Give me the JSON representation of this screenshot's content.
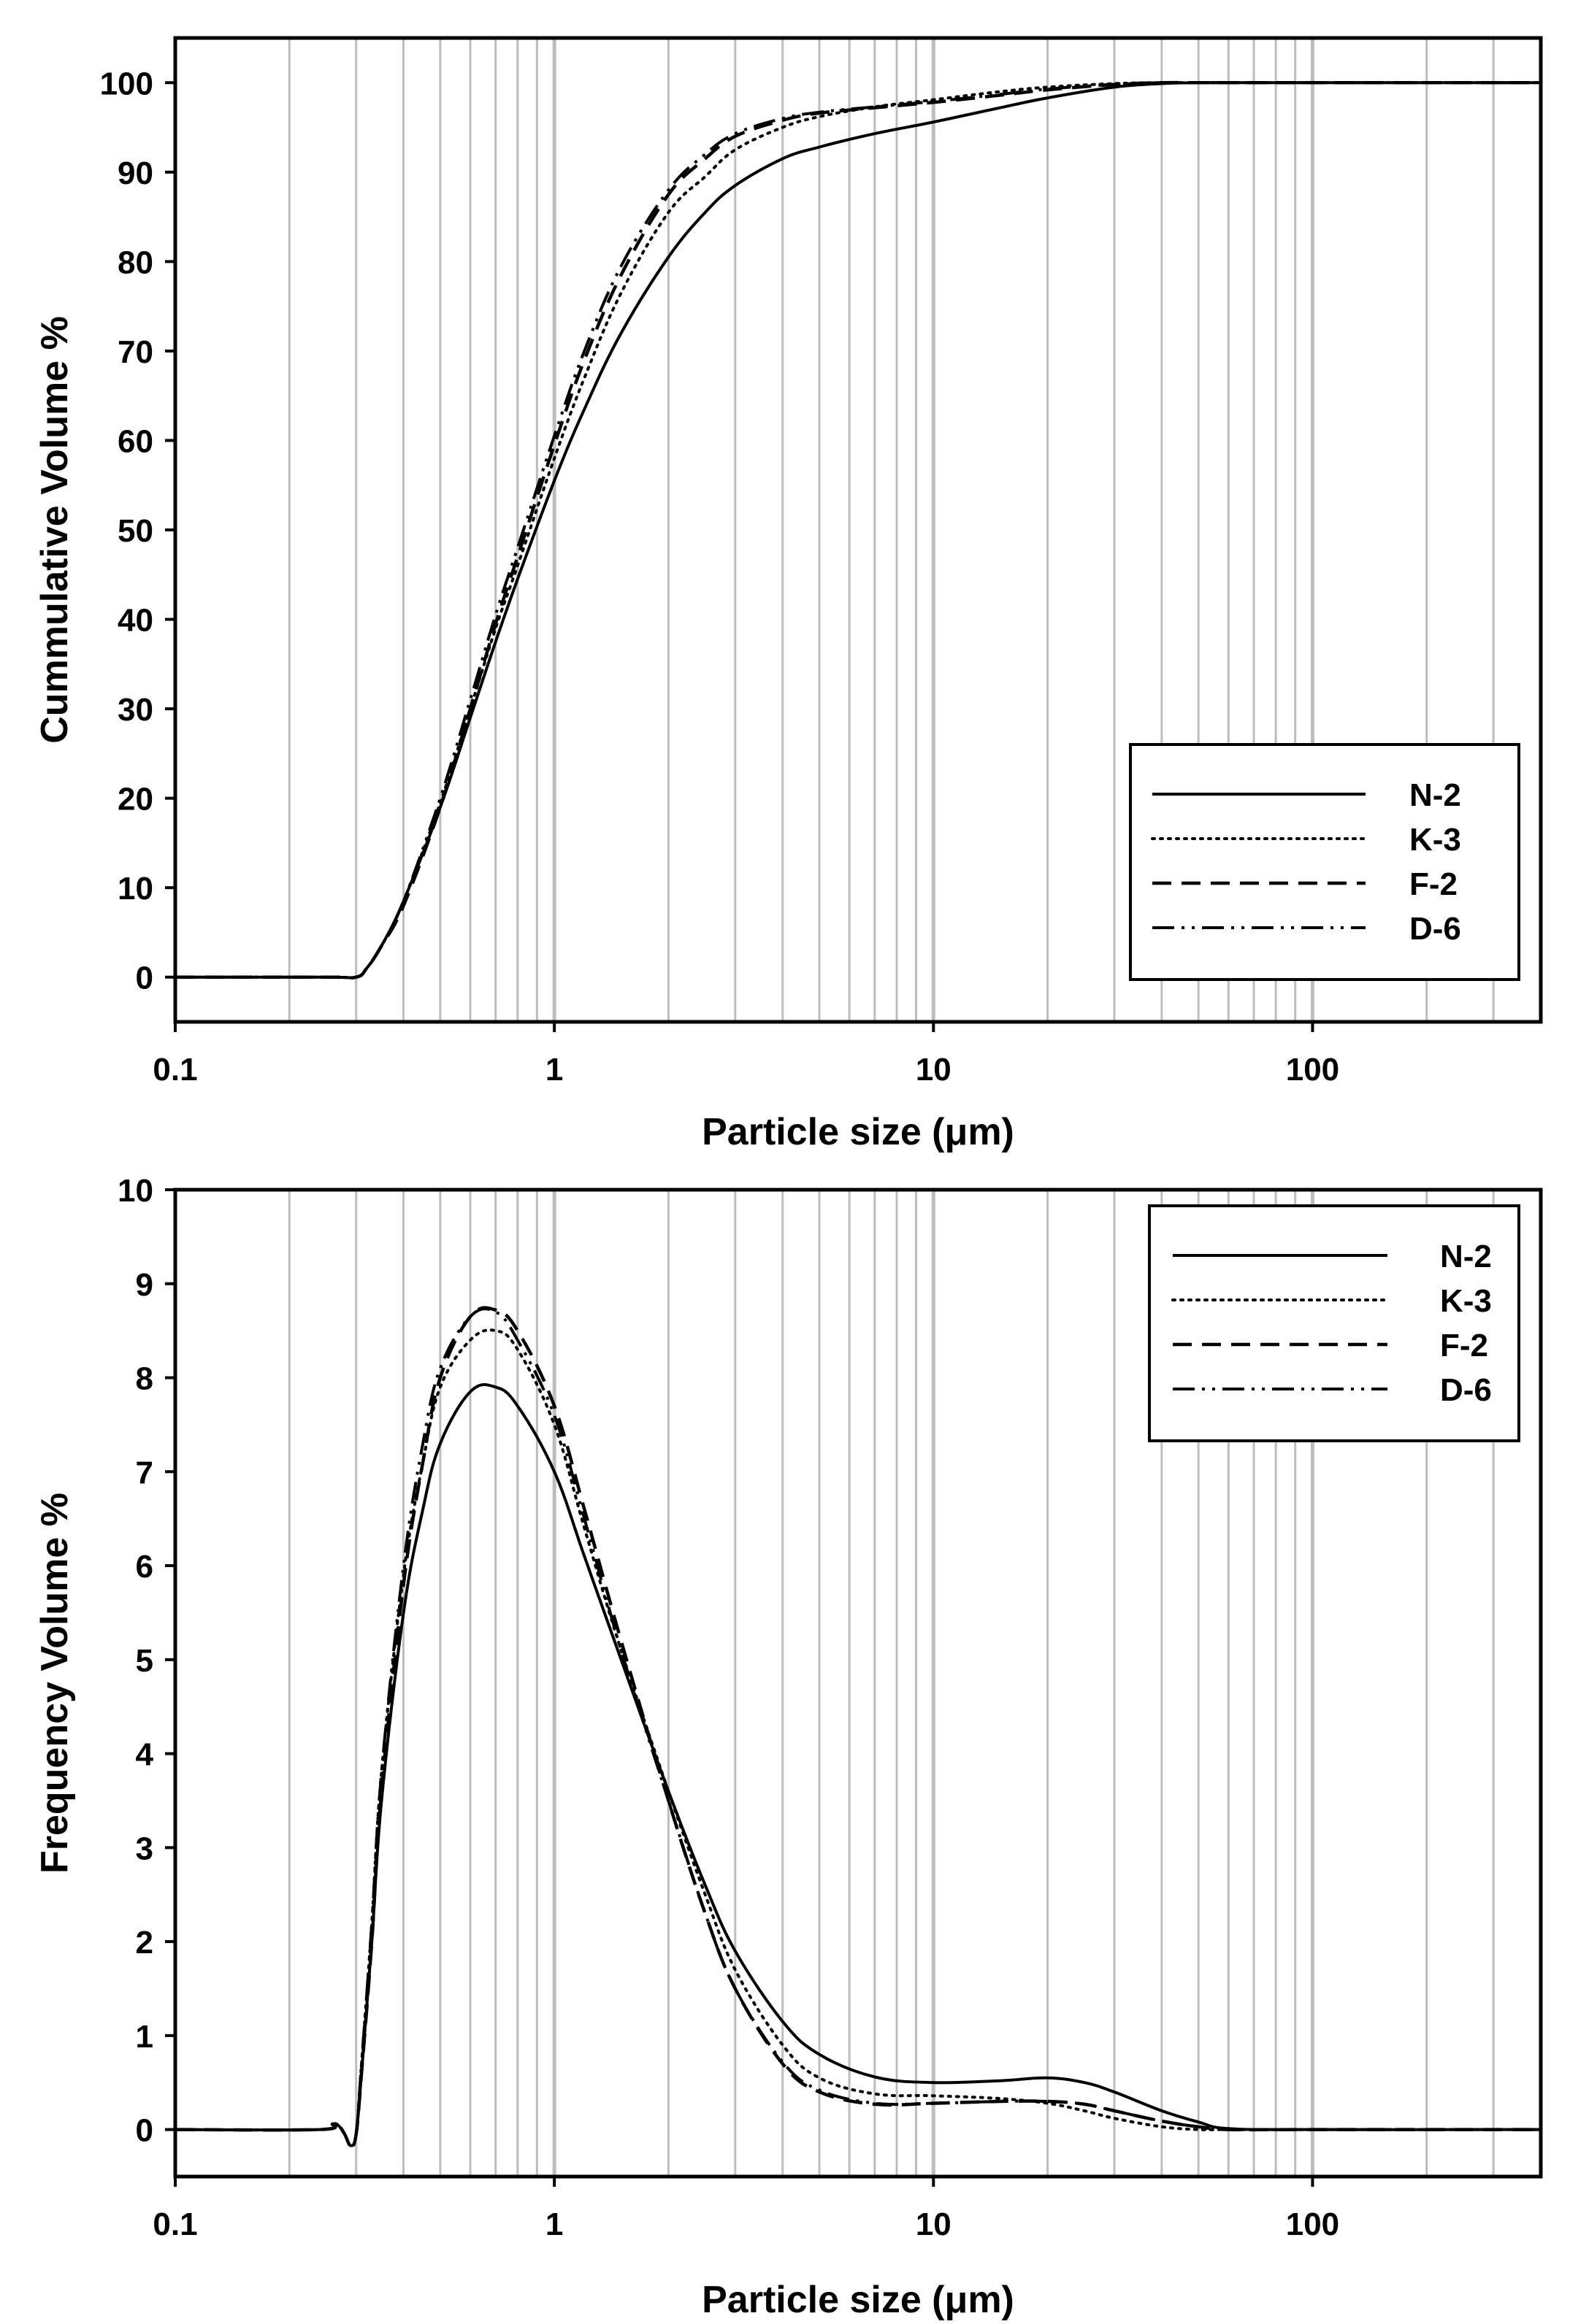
{
  "chart_data": [
    {
      "type": "line",
      "id": "cumulative",
      "xscale": "log",
      "xlim": [
        0.1,
        400
      ],
      "ylim": [
        -5,
        105
      ],
      "xticks": [
        0.1,
        1,
        10,
        100
      ],
      "xtick_labels": [
        "0.1",
        "1",
        "10",
        "100"
      ],
      "yticks": [
        0,
        10,
        20,
        30,
        40,
        50,
        60,
        70,
        80,
        90,
        100
      ],
      "ytick_labels": [
        "0",
        "10",
        "20",
        "30",
        "40",
        "50",
        "60",
        "70",
        "80",
        "90",
        "100"
      ],
      "xlabel": "Particle size (μm)",
      "ylabel": "Cummulative Volume %",
      "grid": "vertical",
      "legend_position": "bottom-right",
      "series": [
        {
          "name": "N-2",
          "style": "solid",
          "x": [
            0.1,
            0.25,
            0.3,
            0.32,
            0.35,
            0.4,
            0.5,
            0.6,
            0.7,
            0.8,
            1.0,
            1.2,
            1.5,
            2.0,
            2.5,
            3,
            4,
            5,
            7,
            10,
            15,
            20,
            30,
            40,
            50,
            100,
            400
          ],
          "y": [
            0,
            0,
            0,
            1,
            3.5,
            8.5,
            19,
            29,
            37.5,
            44.5,
            55.5,
            63.5,
            72,
            80.5,
            85.5,
            88.5,
            91.5,
            92.8,
            94.3,
            95.6,
            97.2,
            98.3,
            99.5,
            99.9,
            100,
            100,
            100
          ]
        },
        {
          "name": "K-3",
          "style": "dotted",
          "x": [
            0.1,
            0.25,
            0.3,
            0.32,
            0.35,
            0.4,
            0.5,
            0.6,
            0.7,
            0.8,
            1.0,
            1.2,
            1.5,
            2.0,
            2.5,
            3,
            4,
            5,
            7,
            10,
            15,
            20,
            30,
            40,
            50,
            100,
            400
          ],
          "y": [
            0,
            0,
            0,
            1,
            3.5,
            8.5,
            19.5,
            30,
            39,
            46,
            58,
            67,
            76.5,
            85.5,
            89.5,
            92.5,
            95,
            96.2,
            97.3,
            98.1,
            99,
            99.5,
            99.9,
            100,
            100,
            100,
            100
          ]
        },
        {
          "name": "F-2",
          "style": "dashed",
          "x": [
            0.1,
            0.25,
            0.3,
            0.32,
            0.35,
            0.4,
            0.5,
            0.6,
            0.7,
            0.8,
            1.0,
            1.2,
            1.5,
            2.0,
            2.5,
            3,
            4,
            5,
            7,
            10,
            15,
            20,
            30,
            40,
            50,
            100,
            400
          ],
          "y": [
            0,
            0,
            0,
            1,
            3.5,
            8,
            19,
            30,
            39.5,
            47,
            59.5,
            69,
            78.5,
            87.5,
            91.5,
            94,
            95.8,
            96.6,
            97.2,
            97.8,
            98.6,
            99.2,
            99.8,
            100,
            100,
            100,
            100
          ]
        },
        {
          "name": "D-6",
          "style": "dash-dot-dot",
          "x": [
            0.1,
            0.25,
            0.3,
            0.32,
            0.35,
            0.4,
            0.5,
            0.6,
            0.7,
            0.8,
            1.0,
            1.2,
            1.5,
            2.0,
            2.5,
            3,
            4,
            5,
            7,
            10,
            15,
            20,
            30,
            40,
            50,
            100,
            400
          ],
          "y": [
            0,
            0,
            0,
            1,
            3.5,
            8.5,
            20,
            31,
            40.5,
            48,
            60.5,
            70,
            79.5,
            88,
            92,
            94.3,
            96,
            96.7,
            97.3,
            97.9,
            98.7,
            99.3,
            99.8,
            100,
            100,
            100,
            100
          ]
        }
      ]
    },
    {
      "type": "line",
      "id": "frequency",
      "xscale": "log",
      "xlim": [
        0.1,
        400
      ],
      "ylim": [
        -0.5,
        10
      ],
      "xticks": [
        0.1,
        1,
        10,
        100
      ],
      "xtick_labels": [
        "0.1",
        "1",
        "10",
        "100"
      ],
      "yticks": [
        0,
        1,
        2,
        3,
        4,
        5,
        6,
        7,
        8,
        9,
        10
      ],
      "ytick_labels": [
        "0",
        "1",
        "2",
        "3",
        "4",
        "5",
        "6",
        "7",
        "8",
        "9",
        "10"
      ],
      "xlabel": "Particle size (μm)",
      "ylabel": "Frequency Volume %",
      "grid": "vertical",
      "legend_position": "top-right",
      "series": [
        {
          "name": "N-2",
          "style": "solid",
          "x": [
            0.1,
            0.24,
            0.26,
            0.27,
            0.28,
            0.29,
            0.3,
            0.31,
            0.33,
            0.35,
            0.4,
            0.45,
            0.5,
            0.6,
            0.7,
            0.8,
            1.0,
            1.2,
            1.5,
            2.0,
            2.5,
            3,
            4,
            5,
            7,
            10,
            15,
            20,
            25,
            30,
            40,
            50,
            60,
            100,
            400
          ],
          "y": [
            0,
            0,
            0.06,
            0.04,
            -0.05,
            -0.17,
            -0.05,
            0.6,
            2.0,
            3.5,
            5.5,
            6.6,
            7.3,
            7.85,
            7.9,
            7.7,
            7.0,
            6.1,
            5.0,
            3.6,
            2.6,
            1.9,
            1.15,
            0.8,
            0.56,
            0.5,
            0.52,
            0.55,
            0.5,
            0.4,
            0.2,
            0.08,
            0.01,
            0,
            0
          ]
        },
        {
          "name": "K-3",
          "style": "dotted",
          "x": [
            0.1,
            0.24,
            0.26,
            0.27,
            0.28,
            0.29,
            0.3,
            0.31,
            0.33,
            0.35,
            0.4,
            0.45,
            0.5,
            0.6,
            0.7,
            0.8,
            1.0,
            1.2,
            1.5,
            2.0,
            2.5,
            3,
            4,
            5,
            7,
            10,
            15,
            20,
            25,
            30,
            40,
            50,
            60,
            100,
            400
          ],
          "y": [
            0,
            0,
            0.06,
            0.04,
            -0.05,
            -0.17,
            -0.05,
            0.7,
            2.2,
            3.8,
            5.9,
            7.1,
            7.9,
            8.4,
            8.5,
            8.3,
            7.5,
            6.4,
            5.1,
            3.6,
            2.5,
            1.7,
            0.9,
            0.55,
            0.38,
            0.36,
            0.33,
            0.28,
            0.2,
            0.12,
            0.03,
            0.0,
            0,
            0,
            0
          ]
        },
        {
          "name": "F-2",
          "style": "dashed",
          "x": [
            0.1,
            0.24,
            0.26,
            0.27,
            0.28,
            0.29,
            0.3,
            0.31,
            0.33,
            0.35,
            0.4,
            0.45,
            0.5,
            0.6,
            0.7,
            0.8,
            1.0,
            1.2,
            1.5,
            2.0,
            2.5,
            3,
            4,
            5,
            7,
            10,
            15,
            20,
            25,
            30,
            40,
            50,
            60,
            100,
            400
          ],
          "y": [
            0,
            0,
            0.06,
            0.04,
            -0.05,
            -0.17,
            -0.05,
            0.6,
            2.0,
            3.6,
            5.8,
            7.1,
            8.0,
            8.65,
            8.72,
            8.5,
            7.7,
            6.6,
            5.2,
            3.5,
            2.3,
            1.5,
            0.7,
            0.4,
            0.27,
            0.28,
            0.3,
            0.3,
            0.27,
            0.2,
            0.09,
            0.03,
            0,
            0,
            0
          ]
        },
        {
          "name": "D-6",
          "style": "dash-dot-dot",
          "x": [
            0.1,
            0.24,
            0.26,
            0.27,
            0.28,
            0.29,
            0.3,
            0.31,
            0.33,
            0.35,
            0.4,
            0.45,
            0.5,
            0.6,
            0.7,
            0.8,
            1.0,
            1.2,
            1.5,
            2.0,
            2.5,
            3,
            4,
            5,
            7,
            10,
            15,
            20,
            25,
            30,
            40,
            50,
            60,
            100,
            400
          ],
          "y": [
            0,
            0,
            0.06,
            0.04,
            -0.05,
            -0.17,
            -0.05,
            0.7,
            2.2,
            3.8,
            6.0,
            7.3,
            8.1,
            8.65,
            8.7,
            8.4,
            7.6,
            6.5,
            5.1,
            3.5,
            2.3,
            1.5,
            0.72,
            0.42,
            0.28,
            0.28,
            0.3,
            0.3,
            0.27,
            0.2,
            0.09,
            0.03,
            0,
            0,
            0
          ]
        }
      ]
    }
  ]
}
